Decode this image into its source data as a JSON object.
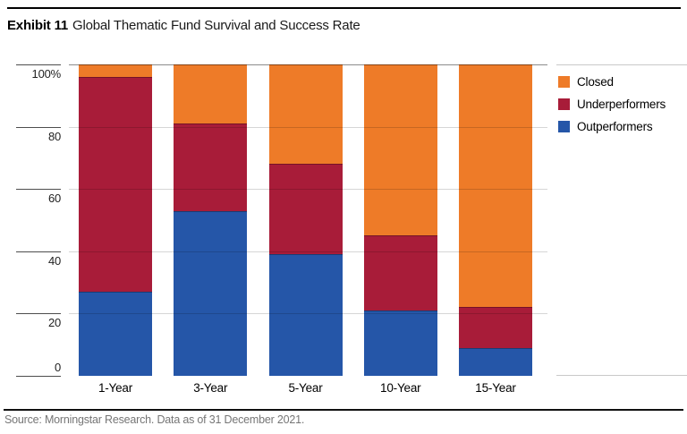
{
  "header": {
    "exhibit_label": "Exhibit 11",
    "title": "Global Thematic Fund Survival and Success Rate"
  },
  "footer": {
    "source": "Source: Morningstar Research. Data as of 31 December 2021."
  },
  "chart_data": {
    "type": "bar",
    "stacked": true,
    "title": "Global Thematic Fund Survival and Success Rate",
    "categories": [
      "1-Year",
      "3-Year",
      "5-Year",
      "10-Year",
      "15-Year"
    ],
    "series": [
      {
        "name": "Outperformers",
        "color": "#2556A8",
        "values": [
          27,
          53,
          39,
          21,
          9
        ]
      },
      {
        "name": "Underperformers",
        "color": "#A81C39",
        "values": [
          69,
          28,
          29,
          24,
          13
        ]
      },
      {
        "name": "Closed",
        "color": "#EE7B28",
        "values": [
          4,
          19,
          32,
          55,
          78
        ]
      }
    ],
    "legend_order": [
      "Closed",
      "Underperformers",
      "Outperformers"
    ],
    "legend_position": "top-right",
    "xlabel": "",
    "ylabel": "",
    "ylim": [
      0,
      100
    ],
    "yticks": [
      0,
      20,
      40,
      60,
      80,
      100
    ],
    "ytick_labels": [
      "0",
      "20",
      "40",
      "60",
      "80",
      "100%"
    ],
    "grid": true
  }
}
